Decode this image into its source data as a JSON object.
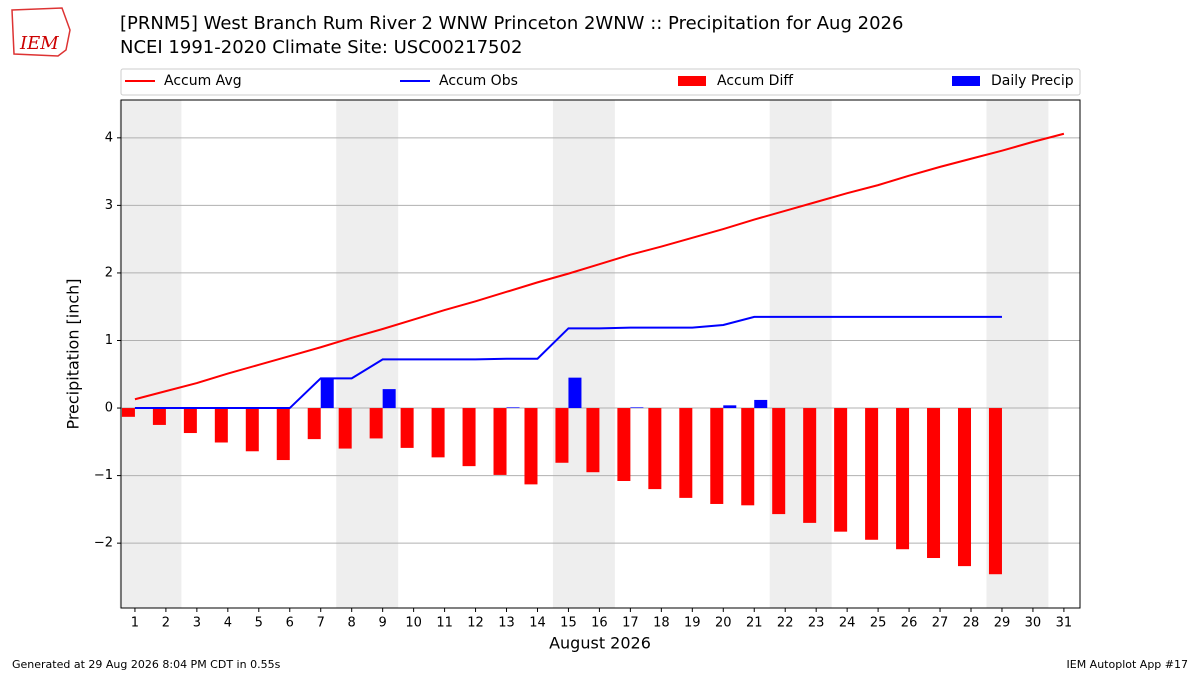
{
  "chart_data": {
    "type": "combo",
    "logo_text": "IEM",
    "title": "[PRNM5] West Branch Rum River 2 WNW Princeton 2WNW :: Precipitation for Aug 2026",
    "subtitle": "NCEI 1991-2020 Climate Site: USC00217502",
    "x_label": "August 2026",
    "y_label": "Precipitation [inch]",
    "footer_left": "Generated at 29 Aug 2026 8:04 PM CDT in 0.55s",
    "footer_right": "IEM Autoplot App #17",
    "x": [
      1,
      2,
      3,
      4,
      5,
      6,
      7,
      8,
      9,
      10,
      11,
      12,
      13,
      14,
      15,
      16,
      17,
      18,
      19,
      20,
      21,
      22,
      23,
      24,
      25,
      26,
      27,
      28,
      29,
      30,
      31
    ],
    "xlim": [
      0.55,
      31.52
    ],
    "xticks": [
      1,
      2,
      3,
      4,
      5,
      6,
      7,
      8,
      9,
      10,
      11,
      12,
      13,
      14,
      15,
      16,
      17,
      18,
      19,
      20,
      21,
      22,
      23,
      24,
      25,
      26,
      27,
      28,
      29,
      30,
      31
    ],
    "ylim": [
      -2.96,
      4.56
    ],
    "yticks": [
      {
        "value": -2,
        "label": "−2"
      },
      {
        "value": -1,
        "label": "−1"
      },
      0,
      1,
      2,
      3,
      4
    ],
    "grid": true,
    "weekend_shading": [
      [
        0.5,
        2.5
      ],
      [
        7.5,
        9.5
      ],
      [
        14.5,
        16.5
      ],
      [
        21.5,
        23.5
      ],
      [
        28.5,
        30.5
      ]
    ],
    "series": [
      {
        "name": "Accum Avg",
        "type": "line",
        "color": "#ff0000",
        "values": [
          0.13,
          0.25,
          0.37,
          0.51,
          0.64,
          0.77,
          0.9,
          1.04,
          1.17,
          1.31,
          1.45,
          1.58,
          1.72,
          1.86,
          1.99,
          2.13,
          2.27,
          2.39,
          2.52,
          2.65,
          2.79,
          2.92,
          3.05,
          3.18,
          3.3,
          3.44,
          3.57,
          3.69,
          3.81,
          3.94,
          4.06
        ]
      },
      {
        "name": "Accum Obs",
        "type": "line",
        "color": "#0000ff",
        "values": [
          0,
          0,
          0,
          0,
          0,
          0,
          0.44,
          0.44,
          0.72,
          0.72,
          0.72,
          0.72,
          0.73,
          0.73,
          1.18,
          1.18,
          1.19,
          1.19,
          1.19,
          1.23,
          1.35,
          1.35,
          1.35,
          1.35,
          1.35,
          1.35,
          1.35,
          1.35,
          1.35,
          null,
          null
        ]
      },
      {
        "name": "Accum Diff",
        "type": "bar",
        "side": "left",
        "color": "#ff0000",
        "values": [
          -0.13,
          -0.25,
          -0.37,
          -0.51,
          -0.64,
          -0.77,
          -0.46,
          -0.6,
          -0.45,
          -0.59,
          -0.73,
          -0.86,
          -0.99,
          -1.13,
          -0.81,
          -0.95,
          -1.08,
          -1.2,
          -1.33,
          -1.42,
          -1.44,
          -1.57,
          -1.7,
          -1.83,
          -1.95,
          -2.09,
          -2.22,
          -2.34,
          -2.46,
          null,
          null
        ]
      },
      {
        "name": "Daily Precip",
        "type": "bar",
        "side": "right",
        "color": "#0000ff",
        "values": [
          0,
          0,
          0,
          0,
          0,
          0,
          0.44,
          0,
          0.28,
          0,
          0,
          0,
          0.01,
          0,
          0.45,
          0,
          0.01,
          0,
          0,
          0.04,
          0.12,
          0,
          0,
          0,
          0,
          0,
          0,
          0,
          0,
          null,
          null
        ]
      }
    ]
  }
}
